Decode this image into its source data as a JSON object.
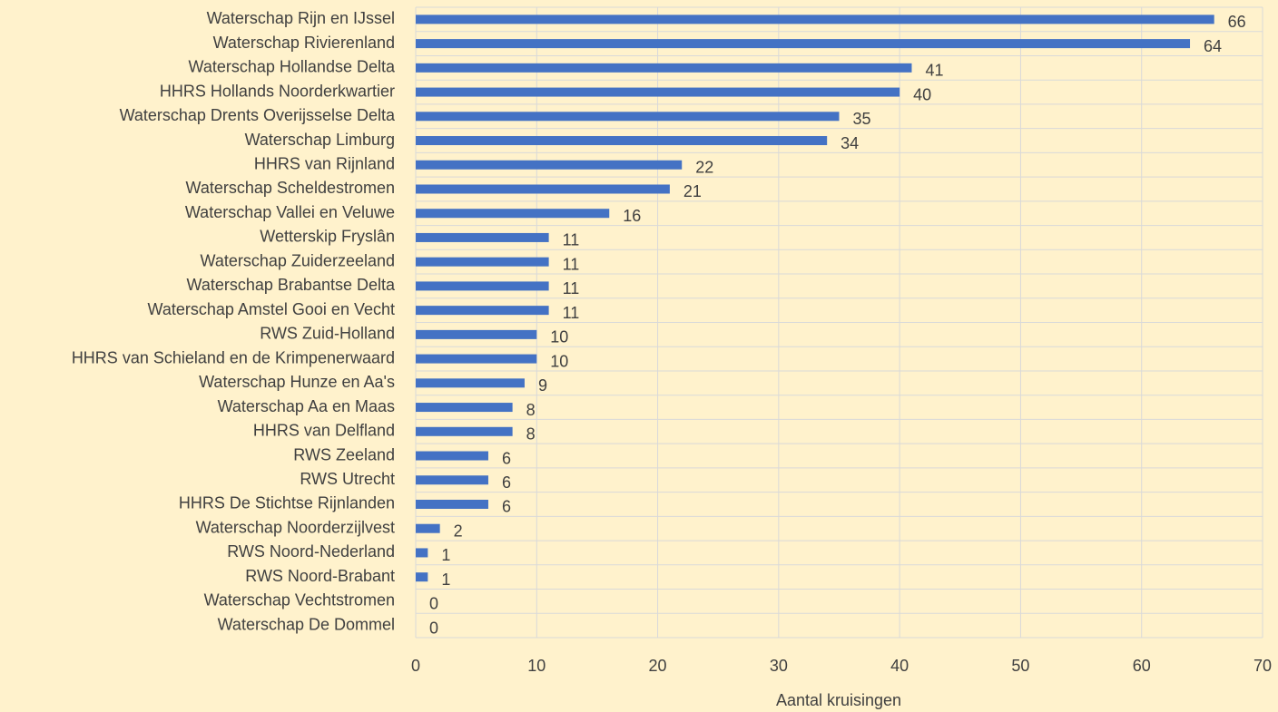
{
  "chart_data": {
    "type": "barh",
    "categories": [
      "Waterschap Rijn en IJssel",
      "Waterschap Rivierenland",
      "Waterschap Hollandse Delta",
      "HHRS Hollands Noorderkwartier",
      "Waterschap Drents Overijsselse Delta",
      "Waterschap Limburg",
      "HHRS van Rijnland",
      "Waterschap Scheldestromen",
      "Waterschap Vallei en Veluwe",
      "Wetterskip Fryslân",
      "Waterschap Zuiderzeeland",
      "Waterschap Brabantse Delta",
      "Waterschap Amstel Gooi en Vecht",
      "RWS Zuid-Holland",
      "HHRS van Schieland en de Krimpenerwaard",
      "Waterschap Hunze en Aa's",
      "Waterschap Aa en Maas",
      "HHRS van Delfland",
      "RWS Zeeland",
      "RWS Utrecht",
      "HHRS De Stichtse Rijnlanden",
      "Waterschap Noorderzijlvest",
      "RWS Noord-Nederland",
      "RWS Noord-Brabant",
      "Waterschap Vechtstromen",
      "Waterschap De Dommel"
    ],
    "values": [
      66,
      64,
      41,
      40,
      35,
      34,
      22,
      21,
      16,
      11,
      11,
      11,
      11,
      10,
      10,
      9,
      8,
      8,
      6,
      6,
      6,
      2,
      1,
      1,
      0,
      0
    ],
    "color": "#4472c4",
    "x_label": "Aantal kruisingen",
    "xlim": [
      0,
      70
    ],
    "xticks": [
      0,
      10,
      20,
      30,
      40,
      50,
      60,
      70
    ],
    "grid": true
  }
}
